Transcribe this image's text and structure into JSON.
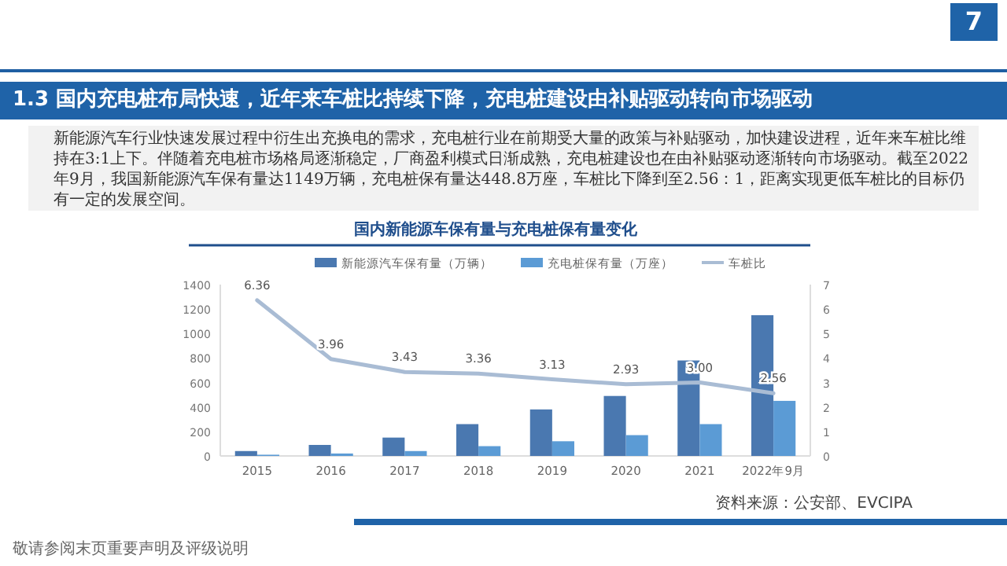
{
  "chart_data": {
    "type": "bar",
    "title": "1.3 国内充电桩布局快速，近年来车桩比持续下降，充电桩建设由补贴驱动转向市场驱动",
    "subtitle": "新能源汽车行业快速发展过程中衍生出充换电的需求，充电桩行业在前期受大量的政策与补贴驱动，加快建设进程，近年来车桩比维持在3:1上下。伴随着充电桩市场格局逐渐稳定，厂商盈利模式日渐成熟，充电桩建设也在由补贴驱动逐渐转向市场驱动。截至2022年9月，我国新能源汽车保有量达1149万辆，充电桩保有量达448.8万座，车桩比下降到至2.56：1，距离实现更低车桩比的目标仍有一定的发展空间。",
    "annotations": [
      "7",
      "国内新能源车保有量与充电桩保有量变化",
      "资料来源：公安部、EVCIPA",
      "敬请参阅末页重要声明及评级说明"
    ],
    "categories": [
      "2015",
      "2016",
      "2017",
      "2018",
      "2019",
      "2020",
      "2021",
      "2022年9月"
    ],
    "series": [
      {
        "name": "新能源汽车保有量（万辆）",
        "color": "#4a78b0",
        "values": [
          40,
          90,
          150,
          260,
          380,
          490,
          780,
          1150
        ]
      },
      {
        "name": "充电桩保有量（万座）",
        "color": "#5b9bd5",
        "values": [
          10,
          20,
          40,
          80,
          120,
          170,
          260,
          450
        ]
      },
      {
        "name": "车桩比",
        "type": "line",
        "axis": "y2",
        "color": "#a9bcd4",
        "values": [
          6.36,
          3.96,
          3.43,
          3.36,
          3.13,
          2.93,
          3.0,
          2.56
        ],
        "value_labels": [
          "6.36",
          "3.96",
          "3.43",
          "3.36",
          "3.13",
          "2.93",
          "3.00",
          "2.56"
        ]
      }
    ],
    "ylim": [
      0,
      1400
    ],
    "yticks": [
      0,
      200,
      400,
      600,
      800,
      1000,
      1200,
      1400
    ],
    "y2lim": [
      0,
      7
    ],
    "y2ticks": [
      0,
      1,
      2,
      3,
      4,
      5,
      6,
      7
    ],
    "grid": false,
    "legend": "top",
    "marker": "none",
    "line_style": "solid"
  }
}
